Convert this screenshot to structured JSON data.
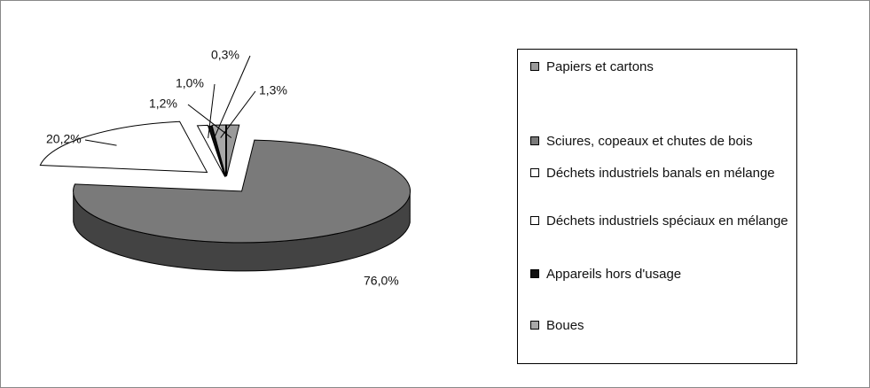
{
  "chart_data": {
    "type": "pie3d",
    "categories": [
      "Papiers et cartons",
      "Sciures, copeaux et chutes de bois",
      "Déchets industriels banals en mélange",
      "Déchets industriels spéciaux en mélange",
      "Appareils hors d'usage",
      "Boues"
    ],
    "values": [
      1.2,
      76.0,
      20.2,
      1.0,
      0.3,
      1.3
    ],
    "value_labels": [
      "1,2%",
      "76,0%",
      "20,2%",
      "1,0%",
      "0,3%",
      "1,3%"
    ],
    "colors": [
      "#9a9a9a",
      "#7a7a7a",
      "#ffffff",
      "#ffffff",
      "#111111",
      "#a8a8a8"
    ]
  }
}
